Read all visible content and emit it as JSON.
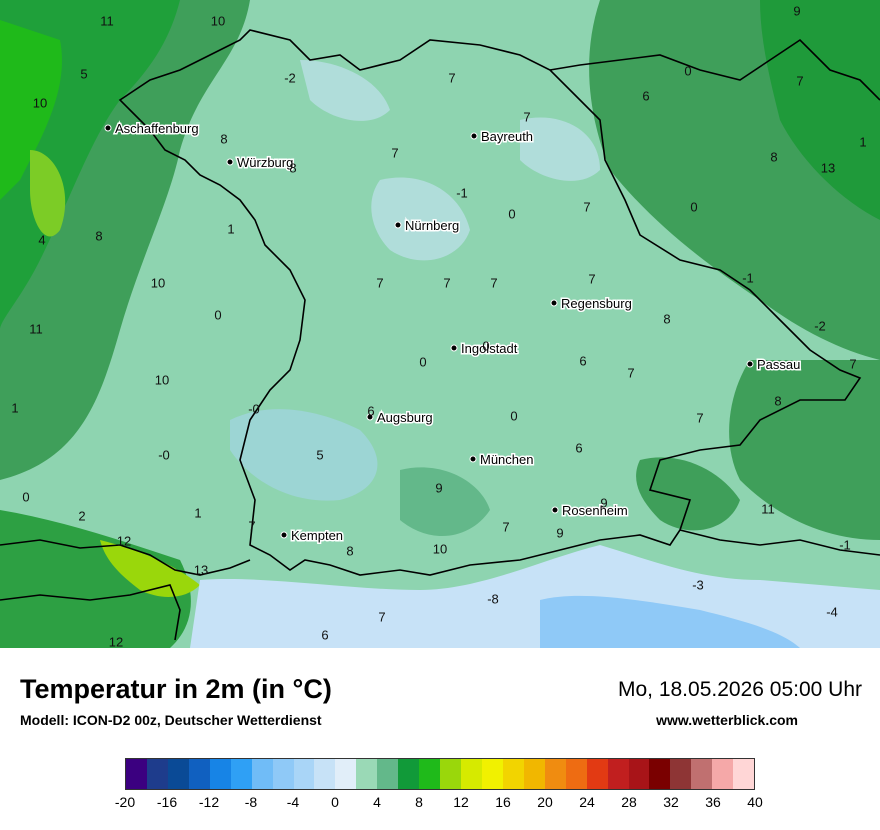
{
  "title": "Temperatur in 2m (in °C)",
  "subtitle": "Modell: ICON-D2 00z, Deutscher Wetterdienst",
  "datetime": "Mo, 18.05.2026 05:00 Uhr",
  "website": "www.wetterblick.com",
  "legend": {
    "ticks": [
      "-20",
      "-16",
      "-12",
      "-8",
      "-4",
      "0",
      "4",
      "8",
      "12",
      "16",
      "20",
      "24",
      "28",
      "32",
      "36",
      "40"
    ],
    "colors": [
      "#3b0080",
      "#1e3c8c",
      "#0a4a96",
      "#1060c0",
      "#1784e6",
      "#2fa0f5",
      "#70bcf7",
      "#8fc9f7",
      "#a9d5f7",
      "#c7e2f7",
      "#e1eef9",
      "#9ad9b6",
      "#63b88a",
      "#119a39",
      "#1fba1a",
      "#9ad70b",
      "#d6ea00",
      "#f1f100",
      "#f2d400",
      "#f1b700",
      "#f08c10",
      "#ee6c12",
      "#e23a13",
      "#c11f1f",
      "#a81418",
      "#7a0000",
      "#8e3535",
      "#c07070",
      "#f5a8a8",
      "#ffd6d6"
    ]
  },
  "cities": [
    {
      "name": "Aschaffenburg"
    },
    {
      "name": "Würzburg"
    },
    {
      "name": "Bayreuth"
    },
    {
      "name": "Nürnberg"
    },
    {
      "name": "Regensburg"
    },
    {
      "name": "Ingolstadt"
    },
    {
      "name": "Passau"
    },
    {
      "name": "Augsburg"
    },
    {
      "name": "München"
    },
    {
      "name": "Rosenheim"
    },
    {
      "name": "Kempten"
    }
  ],
  "values": [
    "11",
    "10",
    "9",
    "5",
    "10",
    "-2",
    "7",
    "0",
    "6",
    "7",
    "7",
    "8",
    "8",
    "8",
    "7",
    "-1",
    "0",
    "7",
    "0",
    "13",
    "4",
    "8",
    "1",
    "1",
    "10",
    "7",
    "7",
    "7",
    "7",
    "-1",
    "11",
    "0",
    "8",
    "-2",
    "0",
    "0",
    "6",
    "7",
    "7",
    "10",
    "1",
    "-0",
    "6",
    "0",
    "8",
    "-0",
    "5",
    "6",
    "9",
    "7",
    "0",
    "2",
    "1",
    "7",
    "9",
    "9",
    "11",
    "12",
    "8",
    "10",
    "-1",
    "13",
    "7",
    "-3",
    "-4",
    "12",
    "6",
    "7",
    "-8"
  ]
}
